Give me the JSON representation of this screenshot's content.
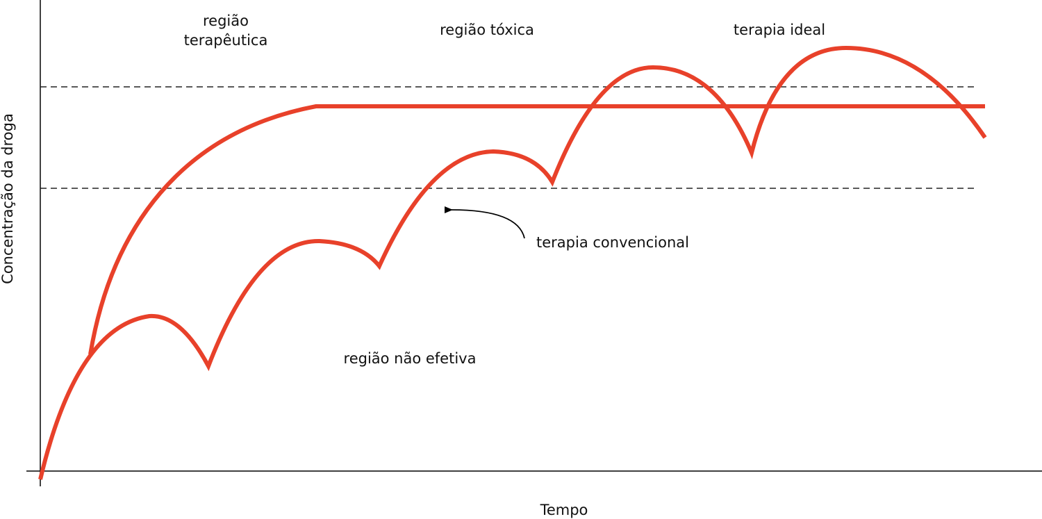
{
  "axes": {
    "y_label": "Concentração da droga",
    "x_label": "Tempo"
  },
  "regions": {
    "therapeutic": [
      "região",
      "terapêutica"
    ],
    "toxic": "região tóxica",
    "ineffective": "região não efetiva"
  },
  "curves": {
    "ideal": "terapia ideal",
    "conventional": "terapia convencional"
  }
}
